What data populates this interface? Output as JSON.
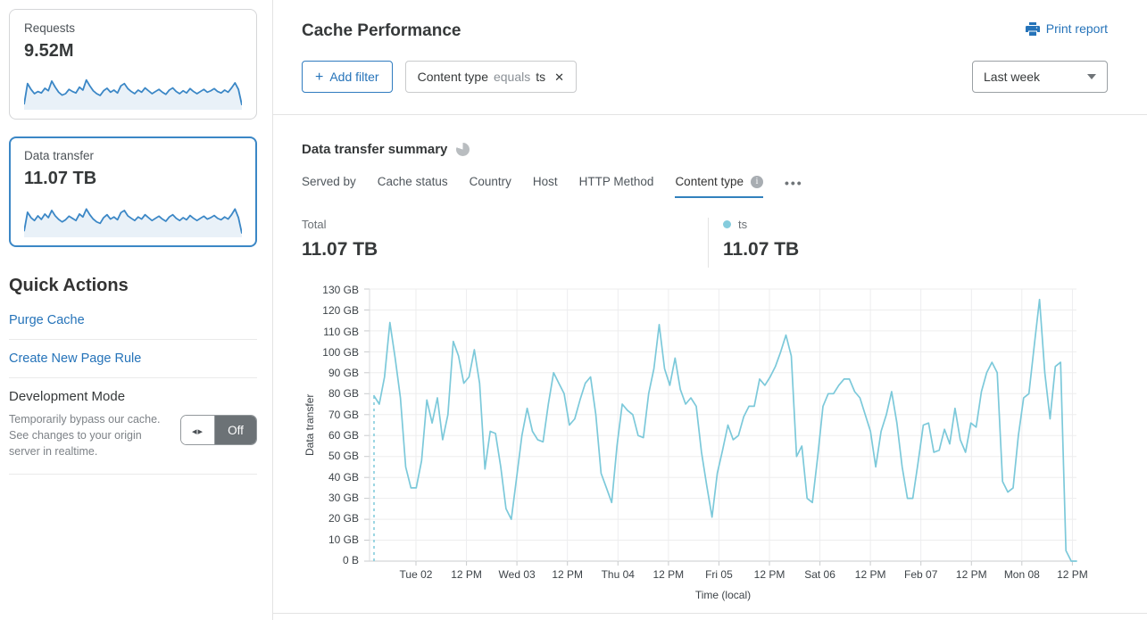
{
  "colors": {
    "accent_blue": "#2F7BBF",
    "link_blue": "#2573B9",
    "chart_line": "#7CC9DA",
    "sparkline_line": "#3B87C6",
    "sparkline_fill": "#E9F1F8",
    "toggle_off_bg": "#6C7276"
  },
  "sidebar": {
    "cards": [
      {
        "label": "Requests",
        "value": "9.52M",
        "selected": false,
        "sparkline": [
          10,
          68,
          52,
          40,
          46,
          42,
          55,
          48,
          75,
          58,
          44,
          36,
          40,
          52,
          46,
          42,
          58,
          50,
          78,
          62,
          48,
          40,
          35,
          48,
          55,
          44,
          50,
          42,
          62,
          68,
          54,
          46,
          40,
          50,
          44,
          56,
          48,
          40,
          46,
          52,
          44,
          38,
          50,
          56,
          46,
          40,
          48,
          42,
          54,
          46,
          40,
          46,
          52,
          44,
          48,
          54,
          46,
          42,
          50,
          44,
          56,
          70,
          52,
          8
        ]
      },
      {
        "label": "Data transfer",
        "value": "11.07 TB",
        "selected": true,
        "sparkline": [
          12,
          65,
          50,
          42,
          55,
          45,
          60,
          50,
          70,
          55,
          45,
          38,
          44,
          54,
          48,
          42,
          60,
          52,
          74,
          58,
          46,
          38,
          34,
          50,
          58,
          46,
          52,
          44,
          64,
          70,
          55,
          48,
          42,
          52,
          46,
          58,
          50,
          42,
          48,
          54,
          46,
          40,
          52,
          58,
          48,
          42,
          50,
          44,
          56,
          48,
          42,
          48,
          54,
          46,
          50,
          56,
          48,
          44,
          52,
          46,
          58,
          74,
          50,
          6
        ]
      }
    ],
    "quick_actions": {
      "title": "Quick Actions",
      "links": [
        {
          "label": "Purge Cache"
        },
        {
          "label": "Create New Page Rule"
        }
      ],
      "dev_mode": {
        "title": "Development Mode",
        "description": "Temporarily bypass our cache. See changes to your origin server in realtime.",
        "toggle_state": "Off"
      }
    }
  },
  "header": {
    "title": "Cache Performance",
    "print_label": "Print report",
    "add_filter_label": "Add filter",
    "filter_chip": {
      "field": "Content type",
      "operator": "equals",
      "value": "ts"
    },
    "time_range": "Last week"
  },
  "summary": {
    "title": "Data transfer summary",
    "tabs": [
      {
        "label": "Served by",
        "active": false
      },
      {
        "label": "Cache status",
        "active": false
      },
      {
        "label": "Country",
        "active": false
      },
      {
        "label": "Host",
        "active": false
      },
      {
        "label": "HTTP Method",
        "active": false
      },
      {
        "label": "Content type",
        "active": true,
        "info": true
      }
    ],
    "stats": {
      "total_label": "Total",
      "total_value": "11.07 TB",
      "series_label": "ts",
      "series_value": "11.07 TB"
    }
  },
  "chart_data": {
    "type": "line",
    "title": "Data transfer summary",
    "xlabel": "Time (local)",
    "ylabel": "Data transfer",
    "unit": "GB",
    "ylim": [
      0,
      130
    ],
    "grid": true,
    "leading_dashed_from_zero": true,
    "y_ticks": [
      "130 GB",
      "120 GB",
      "110 GB",
      "100 GB",
      "90 GB",
      "80 GB",
      "70 GB",
      "60 GB",
      "50 GB",
      "40 GB",
      "30 GB",
      "20 GB",
      "10 GB",
      "0 B"
    ],
    "x_ticks": [
      "Tue 02",
      "12 PM",
      "Wed 03",
      "12 PM",
      "Thu 04",
      "12 PM",
      "Fri 05",
      "12 PM",
      "Sat 06",
      "12 PM",
      "Feb 07",
      "12 PM",
      "Mon 08",
      "12 PM"
    ],
    "series": [
      {
        "name": "ts",
        "total": "11.07 TB",
        "color": "#7CC9DA",
        "values_gb": [
          79,
          75,
          88,
          114,
          97,
          78,
          45,
          35,
          35,
          48,
          77,
          66,
          78,
          58,
          70,
          105,
          98,
          85,
          88,
          101,
          85,
          44,
          62,
          61,
          45,
          25,
          20,
          40,
          60,
          73,
          62,
          58,
          57,
          75,
          90,
          85,
          80,
          65,
          68,
          77,
          85,
          88,
          70,
          42,
          35,
          28,
          55,
          75,
          72,
          70,
          60,
          59,
          80,
          92,
          113,
          92,
          84,
          97,
          82,
          75,
          78,
          74,
          52,
          36,
          21,
          42,
          53,
          65,
          58,
          60,
          69,
          74,
          74,
          87,
          84,
          88,
          93,
          100,
          108,
          98,
          50,
          55,
          30,
          28,
          50,
          74,
          80,
          80,
          84,
          87,
          87,
          81,
          78,
          70,
          62,
          45,
          62,
          70,
          81,
          66,
          45,
          30,
          30,
          47,
          65,
          66,
          52,
          53,
          63,
          56,
          73,
          58,
          52,
          66,
          64,
          81,
          90,
          95,
          90,
          38,
          33,
          35,
          60,
          78,
          80,
          103,
          125,
          90,
          68,
          93,
          95,
          5,
          0,
          0
        ]
      }
    ]
  }
}
